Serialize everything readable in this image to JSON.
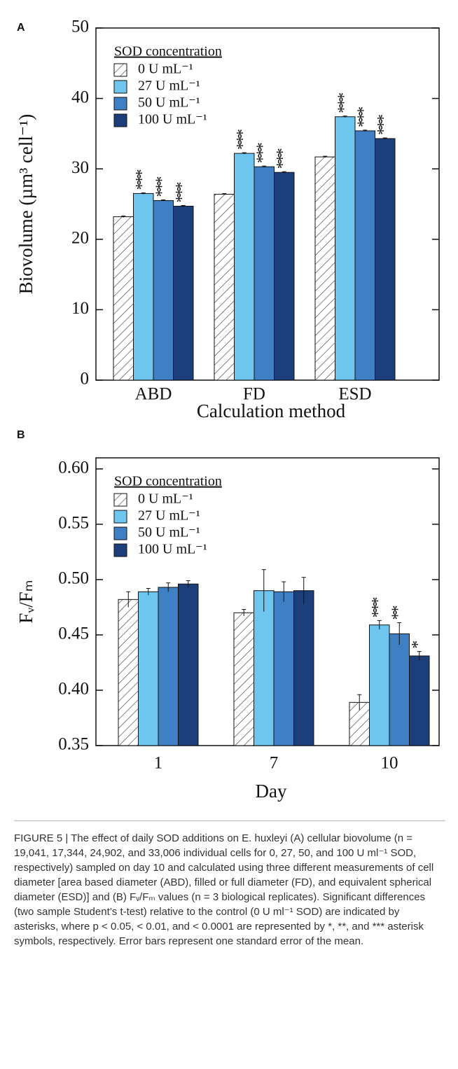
{
  "chart_data": [
    {
      "type": "bar",
      "panel": "A",
      "xlabel": "Calculation method",
      "ylabel": "Biovolume (µm³ cell⁻¹)",
      "categories": [
        "ABD",
        "FD",
        "ESD"
      ],
      "ylim": [
        0,
        50
      ],
      "yticks": [
        0,
        10,
        20,
        30,
        40,
        50
      ],
      "legend_title": "SOD concentration",
      "series": [
        {
          "name": "0 U mL⁻¹",
          "color": "#ffffff",
          "hatch": true,
          "values": [
            23.2,
            26.4,
            31.7
          ],
          "errors": [
            0.1,
            0.1,
            0.1
          ]
        },
        {
          "name": "27 U mL⁻¹",
          "color": "#6ec6ee",
          "values": [
            26.5,
            32.2,
            37.4
          ],
          "errors": [
            0.1,
            0.1,
            0.1
          ],
          "significance": [
            "***",
            "***",
            "***"
          ]
        },
        {
          "name": "50 U mL⁻¹",
          "color": "#3f7fc4",
          "values": [
            25.5,
            30.3,
            35.4
          ],
          "errors": [
            0.1,
            0.1,
            0.1
          ],
          "significance": [
            "***",
            "***",
            "***"
          ]
        },
        {
          "name": "100 U mL⁻¹",
          "color": "#1c3f7c",
          "values": [
            24.7,
            29.5,
            34.3
          ],
          "errors": [
            0.1,
            0.1,
            0.1
          ],
          "significance": [
            "***",
            "***",
            "***"
          ]
        }
      ]
    },
    {
      "type": "bar",
      "panel": "B",
      "xlabel": "Day",
      "ylabel": "Fᵥ/Fₘ",
      "categories": [
        "1",
        "7",
        "10"
      ],
      "ylim": [
        0.35,
        0.61
      ],
      "yticks": [
        0.35,
        {
          "value": 0.4,
          "label": "0.40"
        },
        0.45,
        {
          "value": 0.5,
          "label": "0.50"
        },
        0.55,
        {
          "value": 0.6,
          "label": "0.60"
        }
      ],
      "legend_title": "SOD concentration",
      "series": [
        {
          "name": "0 U mL⁻¹",
          "color": "#ffffff",
          "hatch": true,
          "values": [
            0.482,
            0.47,
            0.389
          ],
          "errors": [
            0.007,
            0.003,
            0.007
          ]
        },
        {
          "name": "27 U mL⁻¹",
          "color": "#6ec6ee",
          "values": [
            0.489,
            0.49,
            0.459
          ],
          "errors": [
            0.003,
            0.019,
            0.004
          ],
          "significance": [
            null,
            null,
            "***"
          ]
        },
        {
          "name": "50 U mL⁻¹",
          "color": "#3f7fc4",
          "values": [
            0.493,
            0.489,
            0.451
          ],
          "errors": [
            0.004,
            0.009,
            0.01
          ],
          "significance": [
            null,
            null,
            "**"
          ]
        },
        {
          "name": "100 U mL⁻¹",
          "color": "#1c3f7c",
          "values": [
            0.496,
            0.49,
            0.431
          ],
          "errors": [
            0.003,
            0.012,
            0.004
          ],
          "significance": [
            null,
            null,
            "*"
          ]
        }
      ]
    }
  ],
  "caption": "FIGURE 5 | The effect of daily SOD additions on E. huxleyi (A) cellular biovolume (n = 19,041, 17,344, 24,902, and 33,006 individual cells for 0, 27, 50, and 100 U ml⁻¹ SOD, respectively) sampled on day 10 and calculated using three different measurements of cell diameter [area based diameter (ABD), filled or full diameter (FD), and equivalent spherical diameter (ESD)] and (B) Fᵥ/Fₘ values (n = 3 biological replicates). Significant differences (two sample Student’s t-test) relative to the control (0 U ml⁻¹ SOD) are indicated by asterisks, where p < 0.05, < 0.01, and < 0.0001 are represented by *, **, and *** asterisk symbols, respectively. Error bars represent one standard error of the mean."
}
